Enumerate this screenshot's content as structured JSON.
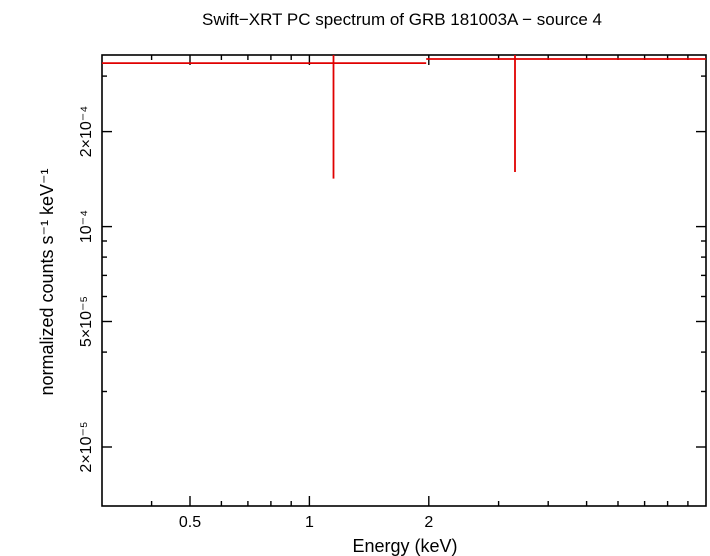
{
  "chart_data": {
    "type": "scatter",
    "title": "Swift−XRT PC spectrum of GRB 181003A − source 4",
    "xlabel": "Energy (keV)",
    "ylabel": "normalized counts s⁻¹ keV⁻¹",
    "x_scale": "log",
    "y_scale": "log",
    "xlim": [
      0.3,
      10
    ],
    "ylim": [
      1.3e-05,
      0.00035
    ],
    "x_ticks": [
      {
        "value": 0.5,
        "label": "0.5"
      },
      {
        "value": 1,
        "label": "1"
      },
      {
        "value": 2,
        "label": "2"
      }
    ],
    "y_ticks": [
      {
        "value": 2e-05,
        "label": "2×10⁻⁵"
      },
      {
        "value": 5e-05,
        "label": "5×10⁻⁵"
      },
      {
        "value": 0.0001,
        "label": "10⁻⁴"
      },
      {
        "value": 0.0002,
        "label": "2×10⁻⁴"
      }
    ],
    "grid": false,
    "series": [
      {
        "color": "#e00000",
        "points": [
          {
            "x": 1.15,
            "x_low": 0.3,
            "x_high": 1.97,
            "y": 0.00033,
            "y_low": 0.000142,
            "y_high": 0.00035
          },
          {
            "x": 3.3,
            "x_low": 1.97,
            "x_high": 10,
            "y": 0.00034,
            "y_low": 0.000149,
            "y_high": 0.00035
          }
        ]
      }
    ]
  }
}
